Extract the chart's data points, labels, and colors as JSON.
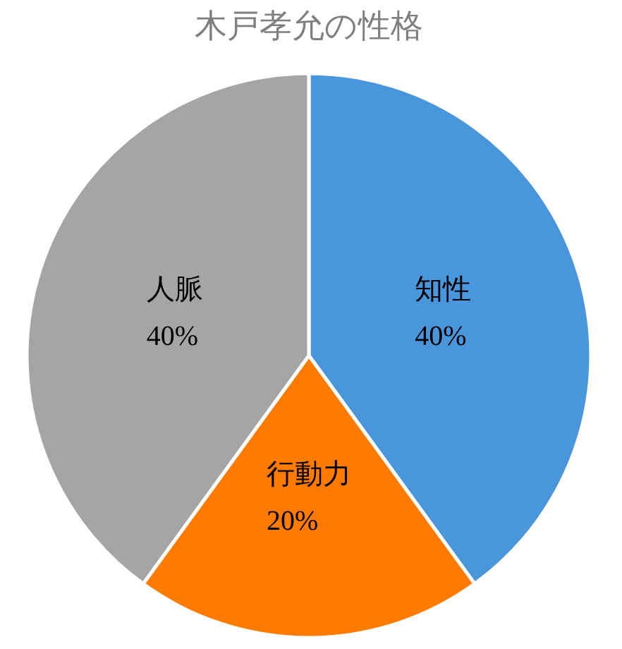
{
  "chart_data": {
    "type": "pie",
    "title": "木戸孝允の性格",
    "categories": [
      "知性",
      "行動力",
      "人脈"
    ],
    "values": [
      40,
      20,
      40
    ],
    "value_labels": [
      "40%",
      "20%",
      "40%"
    ],
    "colors": [
      "#4a96dc",
      "#ff7b00",
      "#a5a5a5"
    ]
  }
}
